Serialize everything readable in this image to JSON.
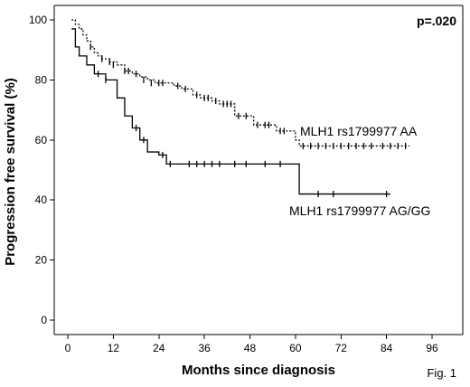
{
  "chart_data": {
    "type": "line",
    "subtype": "kaplan-meier",
    "title": "",
    "xlabel": "Months since diagnosis",
    "ylabel": "Progression free survival (%)",
    "xlim": [
      0,
      96
    ],
    "ylim": [
      0,
      100
    ],
    "xticks": [
      0,
      12,
      24,
      36,
      48,
      60,
      72,
      84,
      96
    ],
    "yticks": [
      0,
      20,
      40,
      60,
      80,
      100
    ],
    "grid": false,
    "annotations": {
      "p_value": "p=.020",
      "figure_label": "Fig. 1"
    },
    "series": [
      {
        "name": "MLH1 rs1799977 AA",
        "line_style": "dotted",
        "x": [
          1,
          2,
          3,
          4,
          5,
          6,
          7,
          8,
          9,
          11,
          13,
          15,
          17,
          19,
          21,
          23,
          28,
          30,
          33,
          35,
          38,
          40,
          44,
          49,
          55,
          60,
          61,
          90
        ],
        "y": [
          100,
          98.5,
          97,
          95,
          93,
          91,
          89,
          88,
          87,
          86,
          85,
          83,
          82,
          81,
          80,
          79,
          78,
          77,
          75,
          74,
          73,
          72,
          68,
          65,
          63,
          60,
          58,
          58
        ],
        "censored": [
          [
            6,
            91
          ],
          [
            9,
            87
          ],
          [
            11,
            86
          ],
          [
            12,
            85
          ],
          [
            15,
            83
          ],
          [
            16,
            83
          ],
          [
            18,
            82
          ],
          [
            20,
            80
          ],
          [
            22,
            79
          ],
          [
            24,
            79
          ],
          [
            25,
            79
          ],
          [
            29,
            78
          ],
          [
            31,
            77
          ],
          [
            34,
            75
          ],
          [
            36,
            74
          ],
          [
            37,
            74
          ],
          [
            39,
            73
          ],
          [
            41,
            72
          ],
          [
            42,
            72
          ],
          [
            43,
            72
          ],
          [
            45,
            68
          ],
          [
            47,
            68
          ],
          [
            50,
            65
          ],
          [
            52,
            65
          ],
          [
            53,
            65
          ],
          [
            56,
            63
          ],
          [
            57,
            63
          ],
          [
            62,
            58
          ],
          [
            64,
            58
          ],
          [
            66,
            58
          ],
          [
            68,
            58
          ],
          [
            70,
            58
          ],
          [
            72,
            58
          ],
          [
            74,
            58
          ],
          [
            76,
            58
          ],
          [
            78,
            58
          ],
          [
            80,
            58
          ],
          [
            83,
            58
          ],
          [
            85,
            58
          ],
          [
            87,
            58
          ],
          [
            89,
            58
          ]
        ]
      },
      {
        "name": "MLH1 rs1799977 AG/GG",
        "line_style": "solid",
        "x": [
          1,
          2,
          3,
          5,
          7,
          10,
          13,
          15,
          17,
          19,
          21,
          24,
          26,
          61,
          85
        ],
        "y": [
          97,
          91,
          88,
          85,
          82,
          80,
          74,
          68,
          64,
          60,
          56,
          55,
          52,
          42,
          42
        ],
        "censored": [
          [
            8,
            82
          ],
          [
            10,
            80
          ],
          [
            18,
            64
          ],
          [
            20,
            60
          ],
          [
            25,
            55
          ],
          [
            27,
            52
          ],
          [
            32,
            52
          ],
          [
            34,
            52
          ],
          [
            36,
            52
          ],
          [
            38,
            52
          ],
          [
            40,
            52
          ],
          [
            44,
            52
          ],
          [
            47,
            52
          ],
          [
            52,
            52
          ],
          [
            56,
            52
          ],
          [
            66,
            42
          ],
          [
            70,
            42
          ],
          [
            84,
            42
          ]
        ]
      }
    ]
  }
}
